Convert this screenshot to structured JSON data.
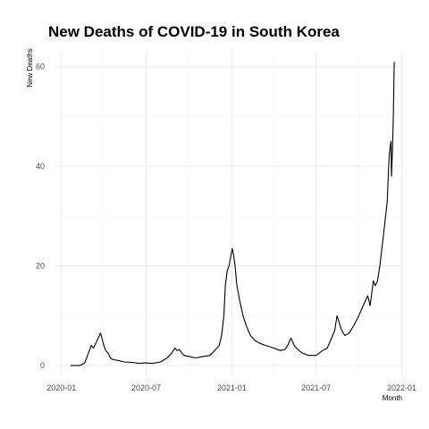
{
  "chart_data": {
    "type": "line",
    "title": "New Deaths of COVID-19 in South Korea",
    "xlabel": "Month",
    "ylabel": "New Deaths",
    "x_ticks": [
      "2020-01",
      "2020-07",
      "2021-01",
      "2021-07",
      "2022-01"
    ],
    "y_ticks": [
      "0",
      "20",
      "40",
      "60"
    ],
    "ylim": [
      -2,
      63
    ],
    "xlim": [
      "2019-12-19",
      "2022-01-02"
    ],
    "grid": true,
    "series": [
      {
        "line_color": "#000000",
        "x": [
          "2020-01-20",
          "2020-02-10",
          "2020-02-20",
          "2020-03-01",
          "2020-03-05",
          "2020-03-10",
          "2020-03-15",
          "2020-03-20",
          "2020-03-25",
          "2020-04-01",
          "2020-04-05",
          "2020-04-10",
          "2020-04-15",
          "2020-04-20",
          "2020-05-01",
          "2020-05-15",
          "2020-06-01",
          "2020-06-15",
          "2020-07-01",
          "2020-07-15",
          "2020-08-01",
          "2020-08-15",
          "2020-08-25",
          "2020-09-01",
          "2020-09-05",
          "2020-09-10",
          "2020-09-20",
          "2020-10-01",
          "2020-10-15",
          "2020-11-01",
          "2020-11-15",
          "2020-11-25",
          "2020-12-05",
          "2020-12-10",
          "2020-12-15",
          "2020-12-18",
          "2020-12-22",
          "2020-12-26",
          "2020-12-30",
          "2021-01-02",
          "2021-01-05",
          "2021-01-08",
          "2021-01-12",
          "2021-01-18",
          "2021-01-25",
          "2021-02-01",
          "2021-02-10",
          "2021-02-20",
          "2021-03-01",
          "2021-03-15",
          "2021-04-01",
          "2021-04-15",
          "2021-04-25",
          "2021-05-01",
          "2021-05-08",
          "2021-05-15",
          "2021-05-25",
          "2021-06-01",
          "2021-06-15",
          "2021-07-01",
          "2021-07-15",
          "2021-07-25",
          "2021-08-01",
          "2021-08-10",
          "2021-08-15",
          "2021-08-25",
          "2021-09-01",
          "2021-09-10",
          "2021-09-20",
          "2021-10-01",
          "2021-10-10",
          "2021-10-20",
          "2021-10-25",
          "2021-11-01",
          "2021-11-05",
          "2021-11-10",
          "2021-11-15",
          "2021-11-20",
          "2021-11-25",
          "2021-12-01",
          "2021-12-03",
          "2021-12-05",
          "2021-12-07",
          "2021-12-09",
          "2021-12-10",
          "2021-12-12",
          "2021-12-14",
          "2021-12-16"
        ],
        "values": [
          0,
          0,
          0.5,
          3,
          4,
          3.5,
          4.5,
          5.5,
          6.5,
          4,
          3,
          2.5,
          1.5,
          1.2,
          1,
          0.7,
          0.6,
          0.4,
          0.5,
          0.4,
          0.7,
          1.5,
          2.5,
          3.5,
          3,
          3.2,
          2,
          1.8,
          1.5,
          1.8,
          2,
          3,
          4,
          6,
          10,
          16,
          19,
          20,
          22,
          23.5,
          22,
          20,
          16,
          13,
          10,
          8,
          6,
          5,
          4.5,
          4,
          3.5,
          3,
          3.2,
          4,
          5.5,
          4,
          3,
          2.5,
          2,
          2,
          3,
          3.5,
          5,
          7,
          10,
          7,
          6,
          6.5,
          8,
          10,
          12,
          14,
          12,
          17,
          16,
          17,
          20,
          24,
          28,
          33,
          38,
          42,
          44,
          45,
          38,
          43,
          50,
          61
        ]
      }
    ]
  }
}
